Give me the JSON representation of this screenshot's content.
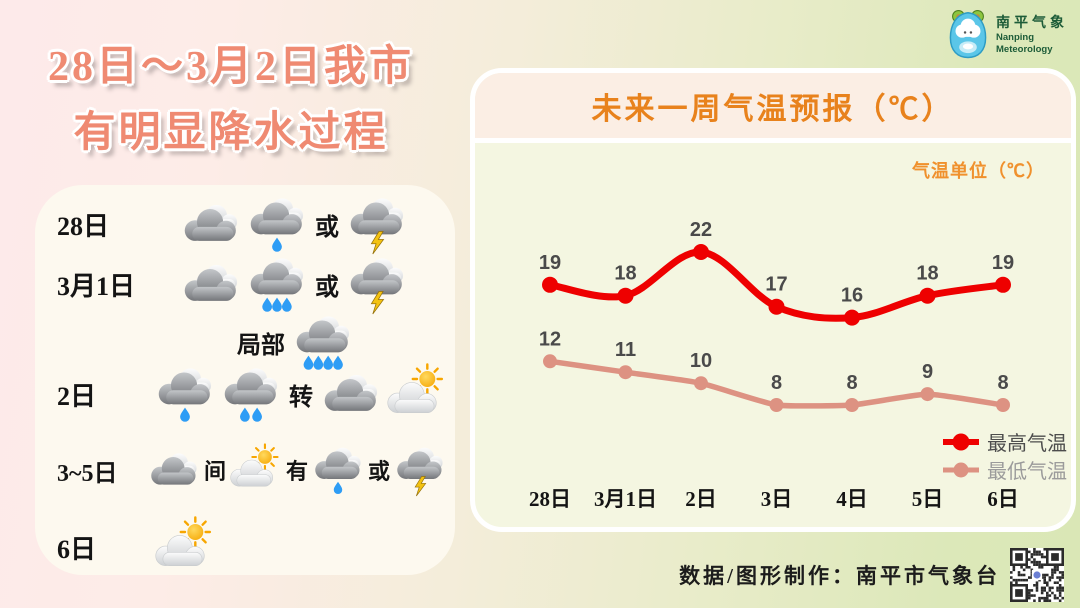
{
  "title": {
    "line1": "28日～3月2日我市",
    "line2": "有明显降水过程"
  },
  "logo": {
    "name_cn": "南平气象",
    "name_en_line1": "Nanping",
    "name_en_line2": "Meteorology"
  },
  "forecast_panel": {
    "rows": [
      {
        "label": "28日",
        "items": [
          {
            "icon": "overcast"
          },
          {
            "icon": "rain-1"
          },
          {
            "text": "或"
          },
          {
            "icon": "thunder"
          }
        ]
      },
      {
        "label": "3月1日",
        "items": [
          {
            "icon": "overcast"
          },
          {
            "icon": "rain-3"
          },
          {
            "text": "或"
          },
          {
            "icon": "thunder"
          }
        ]
      },
      {
        "label": "",
        "items": [
          {
            "text": "局部"
          },
          {
            "icon": "rain-4"
          }
        ]
      },
      {
        "label": "2日",
        "items": [
          {
            "icon": "rain-1"
          },
          {
            "icon": "rain-2"
          },
          {
            "text": "转"
          },
          {
            "icon": "overcast"
          },
          {
            "icon": "sun-cloud"
          }
        ]
      },
      {
        "label": "3~5日",
        "items": [
          {
            "icon": "overcast"
          },
          {
            "text": "间"
          },
          {
            "icon": "sun-cloud"
          },
          {
            "text": "有"
          },
          {
            "icon": "rain-1"
          },
          {
            "text": "或"
          },
          {
            "icon": "thunder"
          }
        ]
      },
      {
        "label": "6日",
        "items": [
          {
            "icon": "sun-cloud"
          }
        ]
      }
    ]
  },
  "chart_data": {
    "type": "line",
    "title": "未来一周气温预报（℃）",
    "unit_label": "气温单位（℃）",
    "categories": [
      "28日",
      "3月1日",
      "2日",
      "3日",
      "4日",
      "5日",
      "6日"
    ],
    "series": [
      {
        "name": "最高气温",
        "values": [
          19,
          18,
          22,
          17,
          16,
          18,
          19
        ],
        "color": "#ee0000",
        "legend_text_color": "#4d4d4d"
      },
      {
        "name": "最低气温",
        "values": [
          12,
          11,
          10,
          8,
          8,
          9,
          8
        ],
        "color": "#dd9282",
        "legend_text_color": "#9b9b9b"
      }
    ],
    "value_label_color": "#4a4a4a",
    "axis_label_color": "#141414",
    "y_implied_range": [
      8,
      22
    ],
    "grid": false,
    "legend_position": "bottom-right"
  },
  "footer": {
    "credit": "数据/图形制作：南平市气象台"
  },
  "colors": {
    "title_text": "#ef8a72",
    "chart_title": "#e8821c",
    "unit_label": "#f0912d",
    "panel_bg": "#fdf9ef",
    "chart_header_bg": "#fbeee4",
    "chart_body_bg": "#f4f6e1",
    "bg_left": "#fdeaea",
    "bg_right": "#dae7b6"
  }
}
